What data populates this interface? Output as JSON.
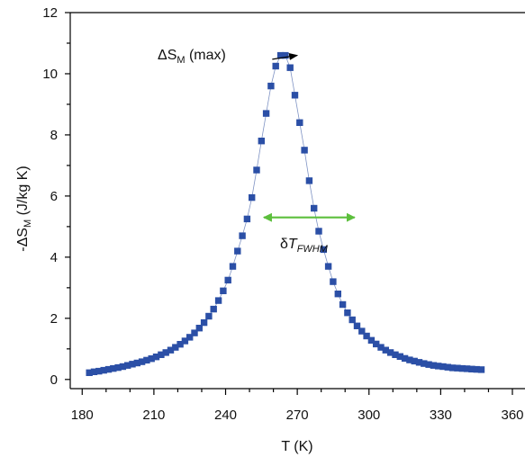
{
  "chart_data": {
    "type": "scatter",
    "xlabel": "T (K)",
    "ylabel": "-ΔS_M (J/kg K)",
    "ylabel_parts": {
      "prefix": "-ΔS",
      "sub": "M",
      "suffix": " (J/kg K)"
    },
    "xlim": [
      175,
      360
    ],
    "ylim": [
      -0.3,
      12
    ],
    "xticks": [
      180,
      210,
      240,
      270,
      300,
      330,
      360
    ],
    "yticks": [
      0,
      2,
      4,
      6,
      8,
      10,
      12
    ],
    "grid": false,
    "colors": {
      "marker": "#2b4fa6",
      "line": "#7f93c4",
      "fwhm_arrow": "#5cbf3c",
      "annotation_arrow": "#000000"
    },
    "series": [
      {
        "x": [
          183,
          185,
          187,
          189,
          191,
          193,
          195,
          197,
          199,
          201,
          203,
          205,
          207,
          209,
          211,
          213,
          215,
          217,
          219,
          221,
          223,
          225,
          227,
          229,
          231,
          233,
          235,
          237,
          239,
          241,
          243,
          245,
          247,
          249,
          251,
          253,
          255,
          257,
          259,
          261,
          263,
          265,
          267,
          269,
          271,
          273,
          275,
          277,
          279,
          281,
          283,
          285,
          287,
          289,
          291,
          293,
          295,
          297,
          299,
          301,
          303,
          305,
          307,
          309,
          311,
          313,
          315,
          317,
          319,
          321,
          323,
          325,
          327,
          329,
          331,
          333,
          335,
          337,
          339,
          341,
          343,
          345,
          347
        ],
        "y": [
          0.22,
          0.25,
          0.27,
          0.3,
          0.33,
          0.36,
          0.39,
          0.42,
          0.46,
          0.5,
          0.54,
          0.58,
          0.63,
          0.68,
          0.74,
          0.81,
          0.88,
          0.96,
          1.05,
          1.15,
          1.26,
          1.38,
          1.52,
          1.68,
          1.86,
          2.07,
          2.3,
          2.58,
          2.9,
          3.25,
          3.7,
          4.2,
          4.7,
          5.25,
          5.95,
          6.85,
          7.8,
          8.7,
          9.6,
          10.25,
          10.6,
          10.6,
          10.2,
          9.3,
          8.4,
          7.5,
          6.5,
          5.6,
          4.85,
          4.25,
          3.7,
          3.2,
          2.8,
          2.45,
          2.18,
          1.95,
          1.75,
          1.58,
          1.42,
          1.28,
          1.16,
          1.05,
          0.96,
          0.88,
          0.81,
          0.75,
          0.69,
          0.64,
          0.6,
          0.56,
          0.52,
          0.49,
          0.46,
          0.44,
          0.42,
          0.4,
          0.38,
          0.37,
          0.36,
          0.35,
          0.34,
          0.33,
          0.32
        ]
      }
    ],
    "annotations": {
      "peak_label_parts": {
        "prefix": "ΔS",
        "sub": "M",
        "suffix": " (max)"
      },
      "peak_arrow": {
        "from": [
          255,
          10.65
        ],
        "to": [
          270,
          10.6
        ]
      },
      "fwhm_label_parts": {
        "prefix": "δ",
        "main": "T",
        "sub": "FWHM"
      },
      "fwhm_arrow": {
        "x1": 256,
        "x2": 294,
        "y": 5.3
      }
    }
  }
}
